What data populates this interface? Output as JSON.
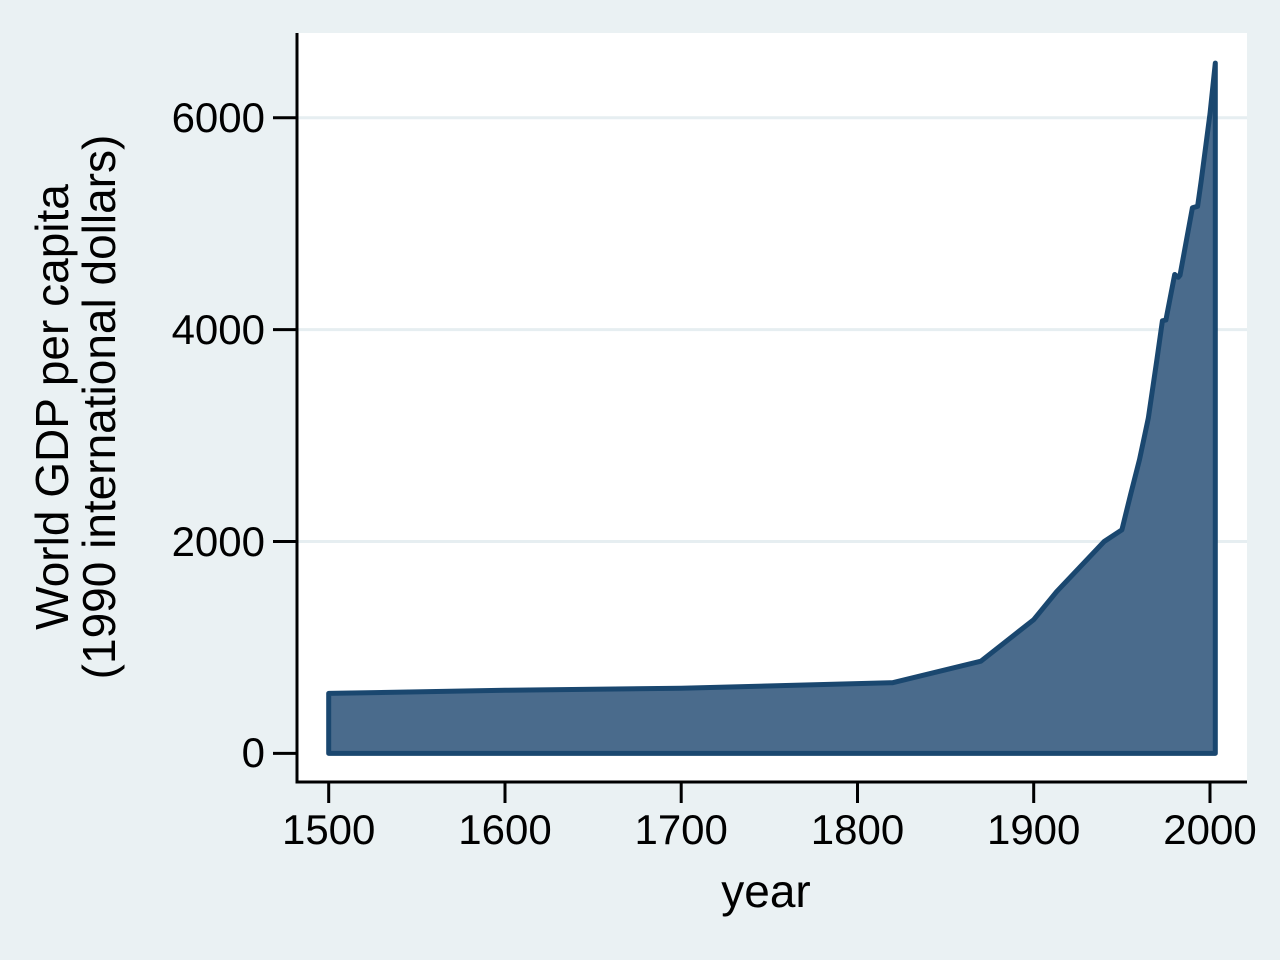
{
  "figure": {
    "background_color": "#eaf1f3",
    "plot_background_color": "#ffffff",
    "grid_color": "#e6eef1",
    "axis_color": "#000000",
    "text_color": "#000000"
  },
  "chart_data": {
    "type": "area",
    "title": "",
    "xlabel": "year",
    "ylabel": "World GDP per capita",
    "ylabel_line2": "(1990 international dollars)",
    "x_ticks": [
      1500,
      1600,
      1700,
      1800,
      1900,
      2000
    ],
    "y_ticks": [
      0,
      2000,
      4000,
      6000
    ],
    "xlim": [
      1482,
      2021
    ],
    "ylim": [
      -270,
      6800
    ],
    "grid": "horizontal gridlines at labeled y ticks above 0",
    "legend_position": "none",
    "area_fill_color": "#4a6b8c",
    "area_line_color": "#1a476f",
    "series": [
      {
        "name": "World GDP per capita (1990 international dollars)",
        "baseline": 0,
        "points": [
          [
            1500,
            566
          ],
          [
            1600,
            596
          ],
          [
            1700,
            615
          ],
          [
            1820,
            667
          ],
          [
            1870,
            870
          ],
          [
            1900,
            1262
          ],
          [
            1913,
            1526
          ],
          [
            1940,
            2000
          ],
          [
            1950,
            2111
          ],
          [
            1955,
            2448
          ],
          [
            1960,
            2773
          ],
          [
            1965,
            3164
          ],
          [
            1970,
            3729
          ],
          [
            1973,
            4083
          ],
          [
            1975,
            4091
          ],
          [
            1980,
            4520
          ],
          [
            1982,
            4494
          ],
          [
            1983,
            4513
          ],
          [
            1990,
            5150
          ],
          [
            1993,
            5164
          ],
          [
            1995,
            5404
          ],
          [
            2000,
            6038
          ],
          [
            2003,
            6516
          ]
        ]
      }
    ]
  }
}
